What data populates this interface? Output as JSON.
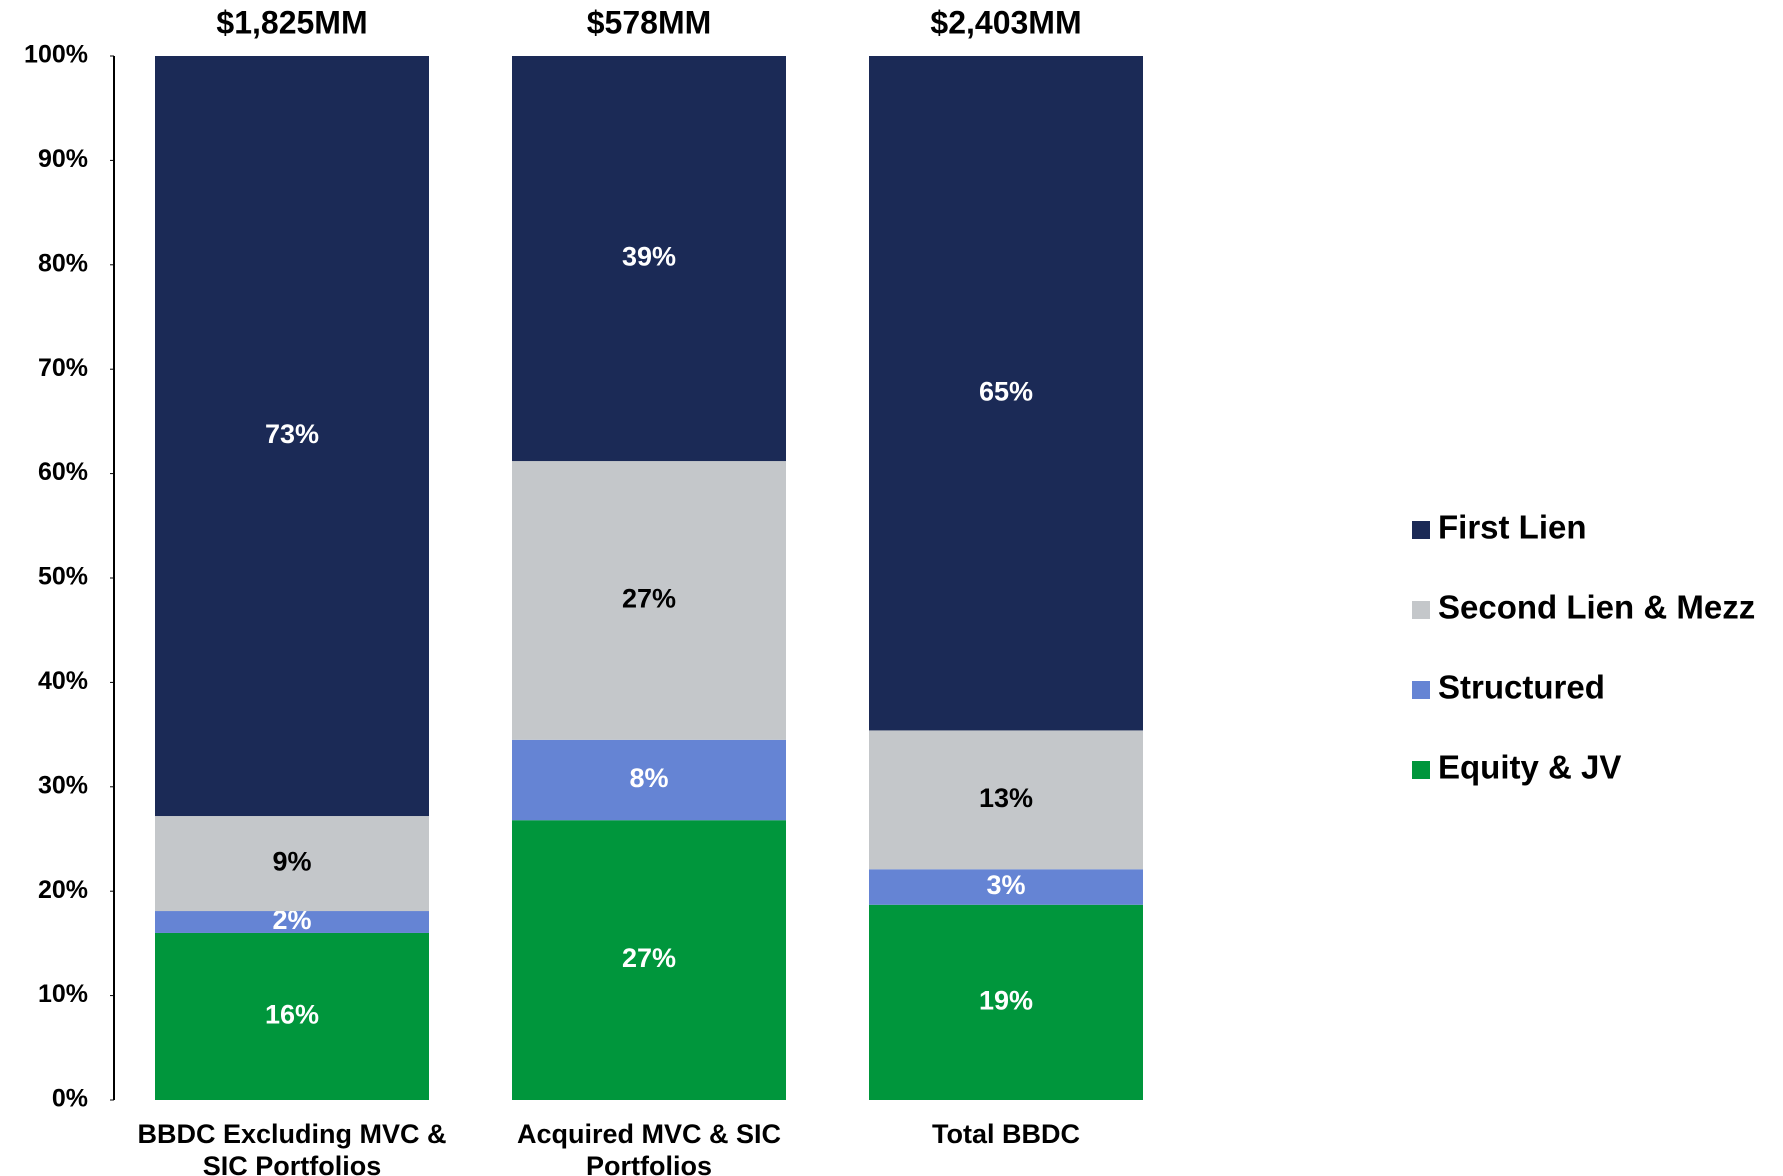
{
  "chart_data": {
    "type": "stacked_bar",
    "categories": [
      "BBDC Excluding MVC & SIC Portfolios",
      "Acquired MVC & SIC Portfolios",
      "Total BBDC"
    ],
    "totals": [
      "$1,825MM",
      "$578MM",
      "$2,403MM"
    ],
    "series": [
      {
        "name": "First Lien",
        "color": "#1b2a56",
        "label_color": "#ffffff",
        "values": [
          72.8,
          38.8,
          64.6
        ],
        "value_labels": [
          "73%",
          "39%",
          "65%"
        ]
      },
      {
        "name": "Second Lien & Mezz",
        "color": "#c4c7ca",
        "label_color": "#000000",
        "values": [
          9.1,
          26.7,
          13.3
        ],
        "value_labels": [
          "9%",
          "27%",
          "13%"
        ]
      },
      {
        "name": "Structured",
        "color": "#6584d4",
        "label_color": "#ffffff",
        "values": [
          2.1,
          7.7,
          3.4
        ],
        "value_labels": [
          "2%",
          "8%",
          "3%"
        ]
      },
      {
        "name": "Equity & JV",
        "color": "#00963c",
        "label_color": "#ffffff",
        "values": [
          16.0,
          26.8,
          18.7
        ],
        "value_labels": [
          "16%",
          "27%",
          "19%"
        ]
      }
    ],
    "ylim": [
      0,
      100
    ],
    "yticks": [
      {
        "value": 0,
        "label": "0%"
      },
      {
        "value": 10,
        "label": "10%"
      },
      {
        "value": 20,
        "label": "20%"
      },
      {
        "value": 30,
        "label": "30%"
      },
      {
        "value": 40,
        "label": "40%"
      },
      {
        "value": 50,
        "label": "50%"
      },
      {
        "value": 60,
        "label": "60%"
      },
      {
        "value": 70,
        "label": "70%"
      },
      {
        "value": 80,
        "label": "80%"
      },
      {
        "value": 90,
        "label": "90%"
      },
      {
        "value": 100,
        "label": "100%"
      }
    ],
    "legend": "right"
  }
}
